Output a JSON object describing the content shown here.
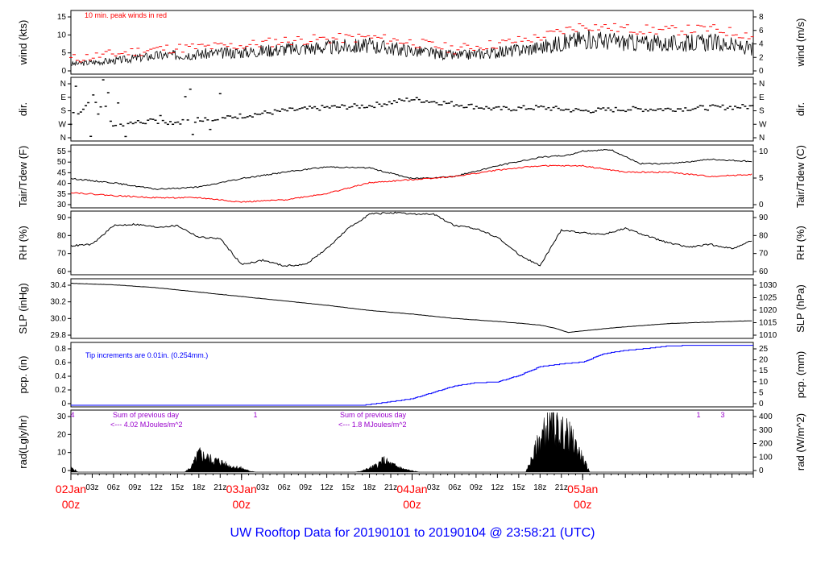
{
  "title": "UW Rooftop Data for 20190101  to  20190104 @ 23:58:21  (UTC)",
  "x_axis": {
    "hour_ticks": [
      "03z",
      "06z",
      "09z",
      "12z",
      "15z",
      "18z",
      "21z",
      "03z",
      "06z",
      "09z",
      "12z",
      "15z",
      "18z",
      "21z",
      "03z",
      "06z",
      "09z",
      "12z",
      "15z",
      "18z",
      "21z"
    ],
    "date_labels": [
      {
        "date": "02Jan",
        "time": "00z"
      },
      {
        "date": "03Jan",
        "time": "00z"
      },
      {
        "date": "04Jan",
        "time": "00z"
      },
      {
        "date": "05Jan",
        "time": "00z"
      }
    ]
  },
  "colors": {
    "series_black": "#000000",
    "peak_red": "#ff0000",
    "dewpoint_red": "#ff0000",
    "precip_blue": "#0000ff",
    "annotation_purple": "#9900cc",
    "title_blue": "#0000ff"
  },
  "chart_data": [
    {
      "type": "line",
      "name": "wind",
      "ylabel_left": "wind (kts)",
      "ylabel_right": "wind (m/s)",
      "ylim_left": [
        0,
        18
      ],
      "left_ticks": [
        "0",
        "5",
        "10",
        "15"
      ],
      "right_ticks": [
        "0",
        "2",
        "4",
        "6",
        "8"
      ],
      "annotation": "10 min. peak winds in red",
      "series": [
        {
          "name": "wind speed",
          "x": [
            0,
            6,
            12,
            18,
            24,
            30,
            36,
            42,
            48,
            54,
            60,
            66,
            72,
            78,
            84,
            90,
            96
          ],
          "values": [
            2.5,
            3.5,
            5,
            5.5,
            6,
            7,
            7.5,
            8,
            6.5,
            5,
            6,
            7.5,
            10,
            9,
            8.5,
            9,
            7
          ]
        },
        {
          "name": "10 min. peak winds",
          "x": [
            0,
            6,
            12,
            18,
            24,
            30,
            36,
            42,
            48,
            54,
            60,
            66,
            72,
            78,
            84,
            90,
            96
          ],
          "values": [
            4,
            5.5,
            7,
            7.5,
            8,
            9.5,
            10,
            10.5,
            9,
            7,
            8.5,
            10.5,
            14,
            13,
            12.5,
            13,
            11
          ]
        }
      ]
    },
    {
      "type": "scatter",
      "name": "direction",
      "ylabel_left": "dir.",
      "ylabel_right": "dir.",
      "left_ticks": [
        "N",
        "W",
        "S",
        "E",
        "N"
      ],
      "right_ticks": [
        "N",
        "W",
        "S",
        "E",
        "N"
      ],
      "series": [
        {
          "name": "wind direction (deg)",
          "x": [
            0,
            3,
            6,
            9,
            12,
            15,
            18,
            24,
            30,
            36,
            42,
            48,
            54,
            60,
            66,
            72,
            78,
            84,
            90,
            96
          ],
          "values": [
            90,
            260,
            90,
            100,
            110,
            100,
            120,
            140,
            170,
            190,
            200,
            240,
            210,
            180,
            190,
            170,
            180,
            180,
            190,
            195
          ]
        }
      ]
    },
    {
      "type": "line",
      "name": "temperature",
      "ylabel_left": "Tair/Tdew (F)",
      "ylabel_right": "Tair/Tdew (C)",
      "ylim_left": [
        29,
        57
      ],
      "left_ticks": [
        "30",
        "35",
        "40",
        "45",
        "50",
        "55"
      ],
      "right_ticks": [
        "0",
        "5",
        "10"
      ],
      "series": [
        {
          "name": "Tair",
          "x": [
            0,
            6,
            12,
            18,
            24,
            30,
            36,
            42,
            48,
            54,
            60,
            66,
            70,
            72,
            76,
            80,
            84,
            90,
            96
          ],
          "values": [
            42,
            40,
            37,
            38,
            42,
            45,
            47.5,
            47,
            42,
            43,
            48,
            52,
            53,
            55,
            55.5,
            49,
            49,
            51,
            50
          ]
        },
        {
          "name": "Tdew",
          "x": [
            0,
            6,
            12,
            18,
            24,
            30,
            36,
            42,
            48,
            54,
            60,
            66,
            72,
            78,
            84,
            90,
            96
          ],
          "values": [
            35.5,
            34,
            33,
            33,
            31,
            32,
            35,
            40,
            41.5,
            43,
            46,
            48,
            48,
            45,
            45,
            43,
            44
          ]
        }
      ]
    },
    {
      "type": "line",
      "name": "humidity",
      "ylabel_left": "RH (%)",
      "ylabel_right": "RH (%)",
      "ylim_left": [
        55,
        97
      ],
      "left_ticks": [
        "60",
        "70",
        "80",
        "90"
      ],
      "right_ticks": [
        "60",
        "70",
        "80",
        "90"
      ],
      "series": [
        {
          "name": "RH",
          "x": [
            0,
            3,
            6,
            9,
            12,
            15,
            18,
            21,
            24,
            27,
            30,
            33,
            36,
            39,
            42,
            45,
            48,
            51,
            54,
            57,
            60,
            63,
            66,
            69,
            72,
            75,
            78,
            81,
            84,
            87,
            90,
            93,
            96
          ],
          "values": [
            74,
            75,
            88,
            89,
            87,
            88,
            80,
            79,
            61,
            64,
            60,
            61,
            72,
            86,
            96,
            97,
            96,
            96,
            88,
            86,
            80,
            68,
            60,
            85,
            83,
            82,
            86,
            81,
            76,
            73,
            75,
            72,
            78
          ]
        }
      ]
    },
    {
      "type": "line",
      "name": "pressure",
      "ylabel_left": "SLP (inHg)",
      "ylabel_right": "SLP (hPa)",
      "ylim_left": [
        29.7,
        30.47
      ],
      "left_ticks": [
        "29.8",
        "30.0",
        "30.2",
        "30.4"
      ],
      "right_ticks": [
        "1010",
        "1015",
        "1020",
        "1025",
        "1030"
      ],
      "series": [
        {
          "name": "SLP",
          "x": [
            0,
            6,
            12,
            18,
            24,
            30,
            36,
            42,
            48,
            54,
            60,
            66,
            68,
            70,
            72,
            76,
            80,
            84,
            90,
            96
          ],
          "values": [
            30.43,
            30.41,
            30.37,
            30.31,
            30.25,
            30.19,
            30.13,
            30.06,
            30.01,
            29.95,
            29.91,
            29.86,
            29.82,
            29.76,
            29.78,
            29.82,
            29.85,
            29.88,
            29.9,
            29.92
          ]
        }
      ]
    },
    {
      "type": "line",
      "name": "precipitation",
      "ylabel_left": "pcp. (in)",
      "ylabel_right": "pcp. (mm)",
      "ylim_left": [
        0,
        0.95
      ],
      "left_ticks": [
        "0",
        "0.2",
        "0.4",
        "0.6",
        "0.8"
      ],
      "right_ticks": [
        "0",
        "5",
        "10",
        "15",
        "20",
        "25"
      ],
      "annotation": "Tip increments are 0.01in. (0.254mm.)",
      "series": [
        {
          "name": "accumulated precipitation",
          "x": [
            0,
            41,
            44,
            48,
            51,
            54,
            57,
            60,
            63,
            66,
            69,
            72,
            75,
            78,
            81,
            84,
            88,
            96
          ],
          "values": [
            0,
            0,
            0.04,
            0.1,
            0.2,
            0.3,
            0.35,
            0.36,
            0.46,
            0.6,
            0.64,
            0.67,
            0.8,
            0.85,
            0.88,
            0.92,
            0.93,
            0.93
          ]
        }
      ]
    },
    {
      "type": "area",
      "name": "radiation",
      "ylabel_left": "rad(Lgly/hr)",
      "ylabel_right": "rad (W/m^2)",
      "ylim_left": [
        0,
        38
      ],
      "left_ticks": [
        "0",
        "10",
        "20",
        "30"
      ],
      "right_ticks": [
        "0",
        "100",
        "200",
        "300",
        "400"
      ],
      "annotations": [
        {
          "line1": "Sum of previous day",
          "line2": "<--- 4.02 MJoules/m^2"
        },
        {
          "line1": "Sum of previous day",
          "line2": "<--- 1.8 MJoules/m^2"
        }
      ],
      "marker_labels": [
        "4",
        "1",
        "1",
        "3"
      ],
      "series": [
        {
          "name": "solar radiation",
          "x": [
            0,
            0.5,
            1,
            16,
            17,
            18,
            19,
            20,
            21,
            22,
            23,
            24,
            25,
            26,
            40,
            41,
            42,
            43,
            44,
            45,
            46,
            47,
            48,
            49,
            64,
            65,
            66,
            67,
            68,
            69,
            70,
            71,
            72,
            73
          ],
          "values": [
            3,
            2,
            0,
            0,
            4,
            14,
            11,
            9,
            8,
            5,
            4,
            3,
            1,
            0,
            0,
            1,
            3,
            5,
            9,
            6,
            4,
            2,
            1,
            0,
            0,
            12,
            25,
            33,
            34,
            30,
            28,
            20,
            10,
            0
          ]
        }
      ]
    }
  ]
}
